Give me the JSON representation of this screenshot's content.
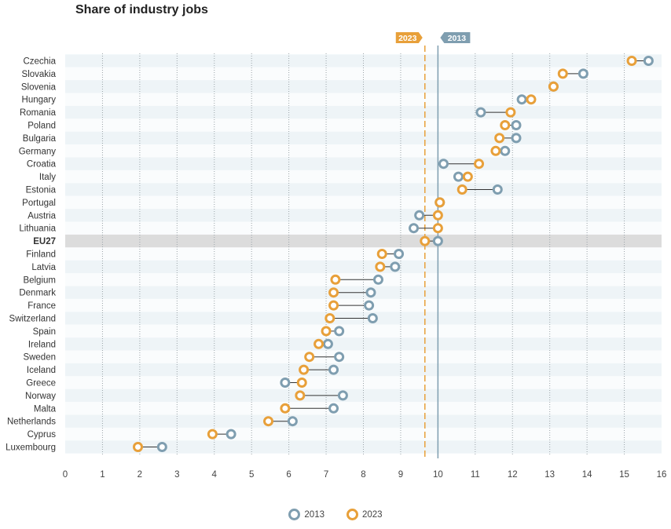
{
  "chart_data": {
    "type": "dumbbell",
    "title": "Share of industry jobs",
    "xlim": [
      0,
      16
    ],
    "xticks": [
      0,
      1,
      2,
      3,
      4,
      5,
      6,
      7,
      8,
      9,
      10,
      11,
      12,
      13,
      14,
      15,
      16
    ],
    "grid": "vertical dotted",
    "legend_position": "bottom-center",
    "series": [
      {
        "name": "2013",
        "color": "#7f9eb0"
      },
      {
        "name": "2023",
        "color": "#e8a03a"
      }
    ],
    "reference_lines": [
      {
        "label": "2023",
        "value": 9.65,
        "color": "#e8a03a",
        "style": "dashed"
      },
      {
        "label": "2013",
        "value": 10.0,
        "color": "#7f9eb0",
        "style": "solid"
      }
    ],
    "highlight_category": "EU27",
    "categories": [
      "Czechia",
      "Slovakia",
      "Slovenia",
      "Hungary",
      "Romania",
      "Poland",
      "Bulgaria",
      "Germany",
      "Croatia",
      "Italy",
      "Estonia",
      "Portugal",
      "Austria",
      "Lithuania",
      "EU27",
      "Finland",
      "Latvia",
      "Belgium",
      "Denmark",
      "France",
      "Switzerland",
      "Spain",
      "Ireland",
      "Sweden",
      "Iceland",
      "Greece",
      "Norway",
      "Malta",
      "Netherlands",
      "Cyprus",
      "Luxembourg"
    ],
    "values_2013": [
      15.65,
      13.9,
      13.1,
      12.25,
      11.15,
      12.1,
      12.1,
      11.8,
      10.15,
      10.55,
      11.6,
      10.05,
      9.5,
      9.35,
      10.0,
      8.95,
      8.85,
      8.4,
      8.2,
      8.15,
      8.25,
      7.35,
      7.05,
      7.35,
      7.2,
      5.9,
      7.45,
      7.2,
      6.1,
      4.45,
      2.6
    ],
    "values_2023": [
      15.2,
      13.35,
      13.1,
      12.5,
      11.95,
      11.8,
      11.65,
      11.55,
      11.1,
      10.8,
      10.65,
      10.05,
      10.0,
      10.0,
      9.65,
      8.5,
      8.45,
      7.25,
      7.2,
      7.2,
      7.1,
      7.0,
      6.8,
      6.55,
      6.4,
      6.35,
      6.3,
      5.9,
      5.45,
      3.95,
      1.95
    ]
  }
}
